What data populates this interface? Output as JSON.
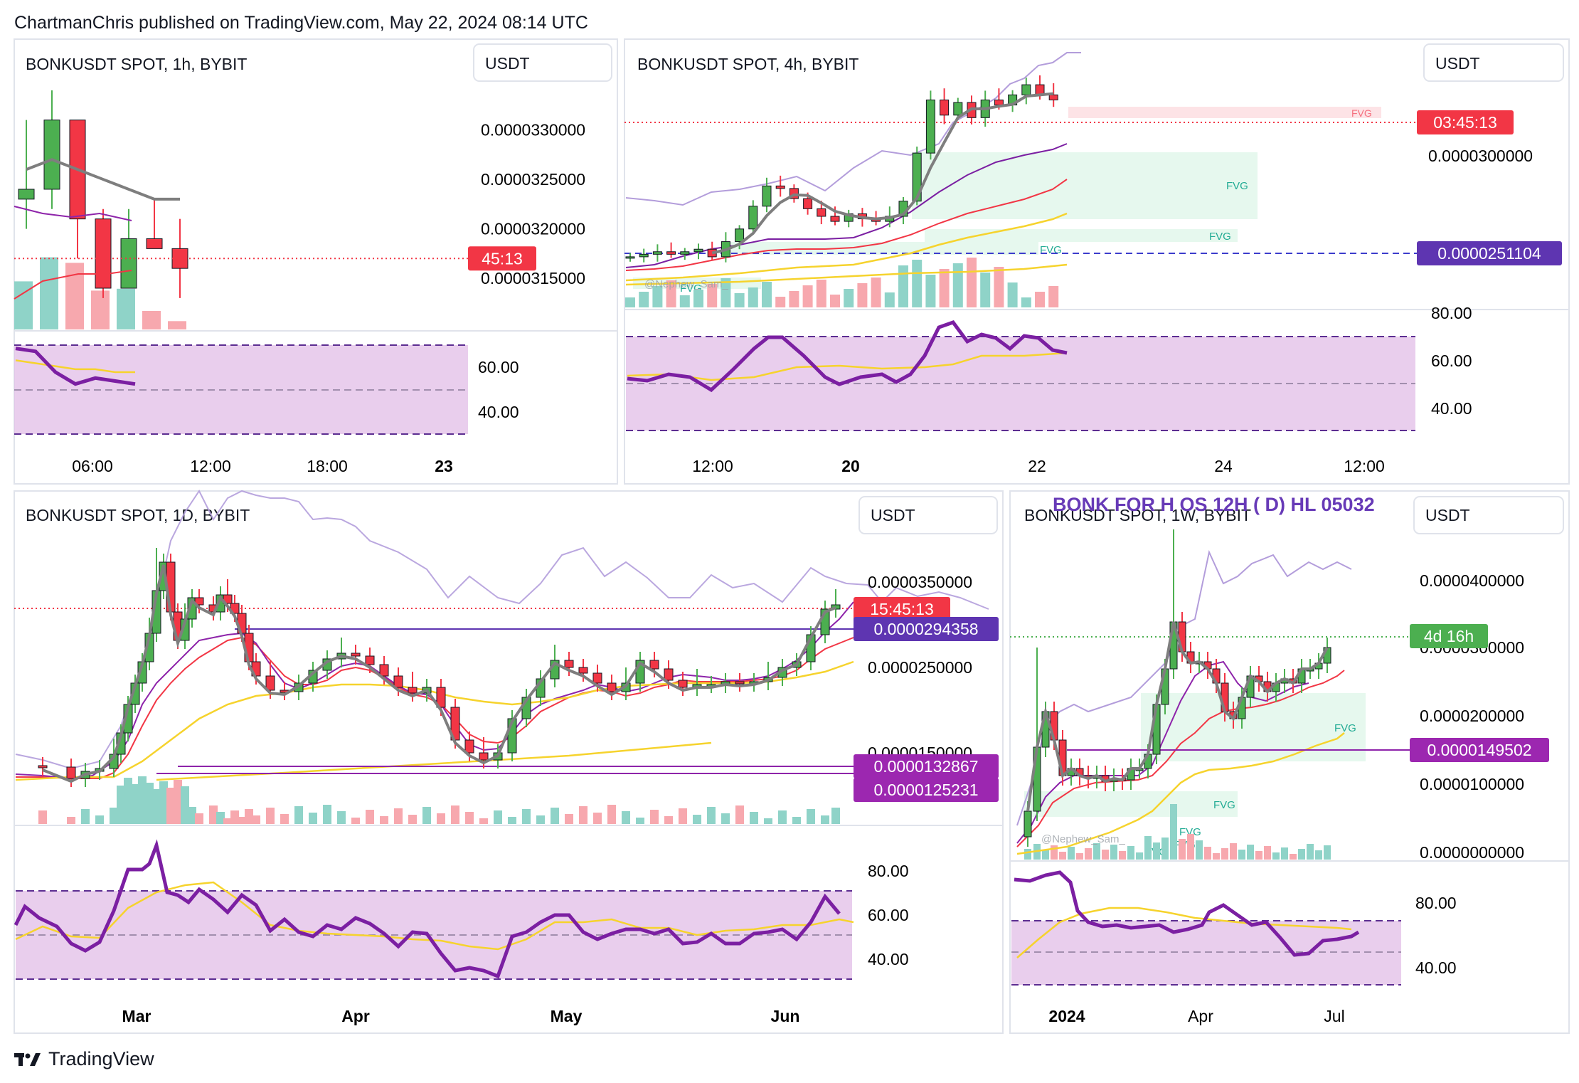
{
  "header": {
    "text": "ChartmanChris published on TradingView.com, May 22, 2024 08:14 UTC"
  },
  "brand": {
    "name": "TradingView"
  },
  "colors": {
    "up": "#4caf50",
    "down": "#f23645",
    "ma": "#7e7e7e",
    "rsi": "#7b1fa2",
    "rsiMa": "#f6d32d",
    "rsiBand": "#e1bee7",
    "fvg": "#e6f8ee"
  },
  "chart_data": [
    {
      "type": "candlestick",
      "title": "BONKUSDT SPOT, 1h, BYBIT",
      "currency": "USDT",
      "price_ticks": [
        "0.0000330000",
        "0.0000325000",
        "0.0000320000",
        "0.0000315000"
      ],
      "price_ticks_values": [
        3.3e-05,
        3.25e-05,
        3.2e-05,
        3.15e-05
      ],
      "ylim": [
        3.122e-05,
        3.345e-05
      ],
      "time_ticks": [
        "06:00",
        "12:00",
        "18:00",
        "23"
      ],
      "current_price_label": "45:13",
      "current_price": 3.17e-05,
      "candles": [
        {
          "o": 3.23e-05,
          "h": 3.31e-05,
          "l": 3.2e-05,
          "c": 3.24e-05
        },
        {
          "o": 3.24e-05,
          "h": 3.34e-05,
          "l": 3.22e-05,
          "c": 3.31e-05
        },
        {
          "o": 3.31e-05,
          "h": 3.31e-05,
          "l": 3.17e-05,
          "c": 3.21e-05
        },
        {
          "o": 3.21e-05,
          "h": 3.22e-05,
          "l": 3.13e-05,
          "c": 3.14e-05
        },
        {
          "o": 3.14e-05,
          "h": 3.22e-05,
          "l": 3.14e-05,
          "c": 3.19e-05
        },
        {
          "o": 3.19e-05,
          "h": 3.23e-05,
          "l": 3.18e-05,
          "c": 3.18e-05
        },
        {
          "o": 3.18e-05,
          "h": 3.21e-05,
          "l": 3.13e-05,
          "c": 3.16e-05
        }
      ],
      "volume": [
        0.52,
        0.78,
        0.72,
        0.42,
        0.44,
        0.2,
        0.09
      ],
      "ma": [
        3.26e-05,
        3.27e-05,
        3.26e-05,
        3.25e-05,
        3.24e-05,
        3.23e-05,
        3.23e-05
      ],
      "rsi_ticks": [
        "60.00",
        "40.00"
      ],
      "rsi": [
        64,
        63,
        56,
        52,
        54,
        53,
        52
      ],
      "rsi_ma": [
        60,
        59,
        58,
        57,
        57,
        56,
        56
      ]
    },
    {
      "type": "candlestick",
      "title": "BONKUSDT SPOT, 4h, BYBIT",
      "currency": "USDT",
      "price_ticks": [
        "0.0000300000"
      ],
      "ylim": [
        2.32e-05,
        3.22e-05
      ],
      "time_ticks": [
        "12:00",
        "20",
        "22",
        "24",
        "12:00"
      ],
      "current_price_label": "03:45:13",
      "level_label": "0.0000251104",
      "level_value": 2.51104e-05,
      "fvg_label": "FVG",
      "watermark": "@Nephew_Sam_",
      "rsi_ticks": [
        "80.00",
        "60.00",
        "40.00"
      ],
      "closes": [
        2.43e-05,
        2.44e-05,
        2.45e-05,
        2.44e-05,
        2.45e-05,
        2.46e-05,
        2.43e-05,
        2.49e-05,
        2.54e-05,
        2.63e-05,
        2.71e-05,
        2.7e-05,
        2.66e-05,
        2.62e-05,
        2.59e-05,
        2.57e-05,
        2.6e-05,
        2.58e-05,
        2.57e-05,
        2.59e-05,
        2.65e-05,
        2.84e-05,
        3.05e-05,
        2.99e-05,
        3.04e-05,
        2.98e-05,
        3.05e-05,
        3.03e-05,
        3.07e-05,
        3.11e-05,
        3.07e-05,
        3.05e-05
      ]
    },
    {
      "type": "candlestick",
      "title": "BONKUSDT SPOT, 1D, BYBIT",
      "currency": "USDT",
      "price_ticks": [
        "0.0000350000",
        "0.0000250000",
        "0.0000150000"
      ],
      "ylim": [
        9.5e-06,
        4.4e-05
      ],
      "time_ticks": [
        "Mar",
        "Apr",
        "May",
        "Jun"
      ],
      "current_price_label": "15:45:13",
      "level_labels": [
        "0.0000294358",
        "0.0000132867",
        "0.0000125231"
      ],
      "rsi_ticks": [
        "80.00",
        "60.00",
        "40.00"
      ]
    },
    {
      "type": "candlestick",
      "title": "BONKUSDT SPOT, 1W, BYBIT",
      "overlay_title": "BONK FOR H OS 12H ( D)  HL 05032",
      "currency": "USDT",
      "price_ticks": [
        "0.0000400000",
        "0.0000300000",
        "0.0000200000",
        "0.0000100000",
        "0.0000000000"
      ],
      "ylim": [
        0.0,
        4.6e-05
      ],
      "time_ticks": [
        "2024",
        "Apr",
        "Jul"
      ],
      "current_price_label": "4d 16h",
      "level_label": "0.0000149502",
      "fvg_label": "FVG",
      "watermark": "@Nephew_Sam_",
      "rsi_ticks": [
        "80.00",
        "40.00"
      ]
    }
  ]
}
